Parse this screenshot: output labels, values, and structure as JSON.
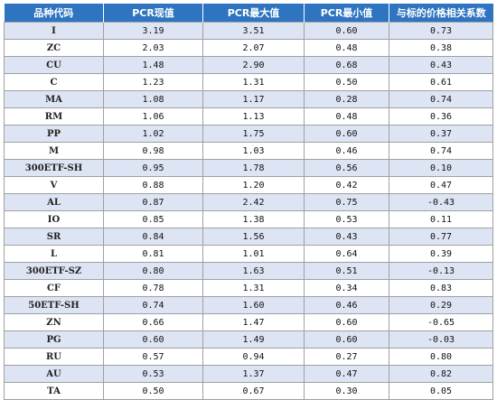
{
  "table": {
    "headers": [
      "品种代码",
      "PCR现值",
      "PCR最大值",
      "PCR最小值",
      "与标的价格相关系数"
    ],
    "colors": {
      "header_bg": "#2e74c0",
      "header_text": "#ffffff",
      "stripe": "#dde4f3",
      "row": "#ffffff",
      "grid": "#a0a0a0"
    },
    "rows": [
      [
        "I",
        "3.19",
        "3.51",
        "0.60",
        "0.73"
      ],
      [
        "ZC",
        "2.03",
        "2.07",
        "0.48",
        "0.38"
      ],
      [
        "CU",
        "1.48",
        "2.90",
        "0.68",
        "0.43"
      ],
      [
        "C",
        "1.23",
        "1.31",
        "0.50",
        "0.61"
      ],
      [
        "MA",
        "1.08",
        "1.17",
        "0.28",
        "0.74"
      ],
      [
        "RM",
        "1.06",
        "1.13",
        "0.48",
        "0.36"
      ],
      [
        "PP",
        "1.02",
        "1.75",
        "0.60",
        "0.37"
      ],
      [
        "M",
        "0.98",
        "1.03",
        "0.46",
        "0.74"
      ],
      [
        "300ETF-SH",
        "0.95",
        "1.78",
        "0.56",
        "0.10"
      ],
      [
        "V",
        "0.88",
        "1.20",
        "0.42",
        "0.47"
      ],
      [
        "AL",
        "0.87",
        "2.42",
        "0.75",
        "-0.43"
      ],
      [
        "IO",
        "0.85",
        "1.38",
        "0.53",
        "0.11"
      ],
      [
        "SR",
        "0.84",
        "1.56",
        "0.43",
        "0.77"
      ],
      [
        "L",
        "0.81",
        "1.01",
        "0.64",
        "0.39"
      ],
      [
        "300ETF-SZ",
        "0.80",
        "1.63",
        "0.51",
        "-0.13"
      ],
      [
        "CF",
        "0.78",
        "1.31",
        "0.34",
        "0.83"
      ],
      [
        "50ETF-SH",
        "0.74",
        "1.60",
        "0.46",
        "0.29"
      ],
      [
        "ZN",
        "0.66",
        "1.47",
        "0.60",
        "-0.65"
      ],
      [
        "PG",
        "0.60",
        "1.49",
        "0.60",
        "-0.03"
      ],
      [
        "RU",
        "0.57",
        "0.94",
        "0.27",
        "0.80"
      ],
      [
        "AU",
        "0.53",
        "1.37",
        "0.47",
        "0.82"
      ],
      [
        "TA",
        "0.50",
        "0.67",
        "0.30",
        "0.05"
      ]
    ]
  }
}
